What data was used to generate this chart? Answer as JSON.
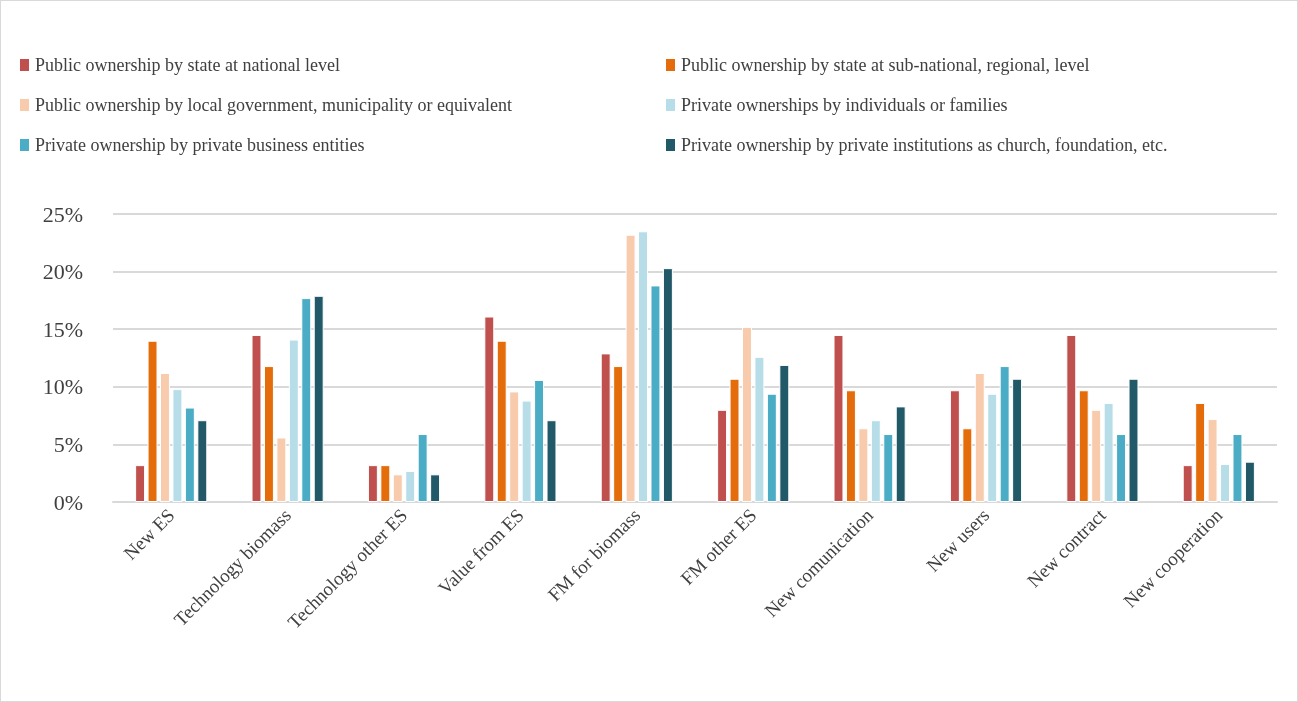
{
  "chart_data": {
    "type": "bar",
    "categories": [
      "New ES",
      "Technology biomass",
      "Technology other ES",
      "Value from ES",
      "FM for biomass",
      "FM other ES",
      "New comunication",
      "New users",
      "New contract",
      "New cooperation"
    ],
    "series": [
      {
        "name": "Public ownership by state at national level",
        "color": "#c0504d",
        "values": [
          3.2,
          14.5,
          3.2,
          16.1,
          12.9,
          8.0,
          14.5,
          9.7,
          14.5,
          3.2
        ]
      },
      {
        "name": "Public ownership by state at sub-national, regional, level",
        "color": "#e46c0a",
        "values": [
          14.0,
          11.8,
          3.2,
          14.0,
          11.8,
          10.7,
          9.7,
          6.4,
          9.7,
          8.6
        ]
      },
      {
        "name": "Public ownership by local government, municipality or equivalent",
        "color": "#f8cbad",
        "values": [
          11.2,
          5.6,
          2.4,
          9.6,
          23.2,
          15.2,
          6.4,
          11.2,
          8.0,
          7.2
        ]
      },
      {
        "name": "Private ownerships by individuals or families",
        "color": "#b7dee8",
        "values": [
          9.8,
          14.1,
          2.7,
          8.8,
          23.5,
          12.6,
          7.1,
          9.4,
          8.6,
          3.3
        ]
      },
      {
        "name": "Private ownership by private business entities",
        "color": "#4bacc6",
        "values": [
          8.2,
          17.7,
          5.9,
          10.6,
          18.8,
          9.4,
          5.9,
          11.8,
          5.9,
          5.9
        ]
      },
      {
        "name": "Private ownership by private institutions as church, foundation, etc.",
        "color": "#215968",
        "values": [
          7.1,
          17.9,
          2.4,
          7.1,
          20.3,
          11.9,
          8.3,
          10.7,
          10.7,
          3.5
        ]
      }
    ],
    "ylim": [
      0,
      25
    ],
    "yticks": [
      {
        "value": 0,
        "label": "0%"
      },
      {
        "value": 5,
        "label": "5%"
      },
      {
        "value": 10,
        "label": "10%"
      },
      {
        "value": 15,
        "label": "15%"
      },
      {
        "value": 20,
        "label": "20%"
      },
      {
        "value": 25,
        "label": "25%"
      }
    ],
    "grid": "y",
    "legend": "top"
  }
}
